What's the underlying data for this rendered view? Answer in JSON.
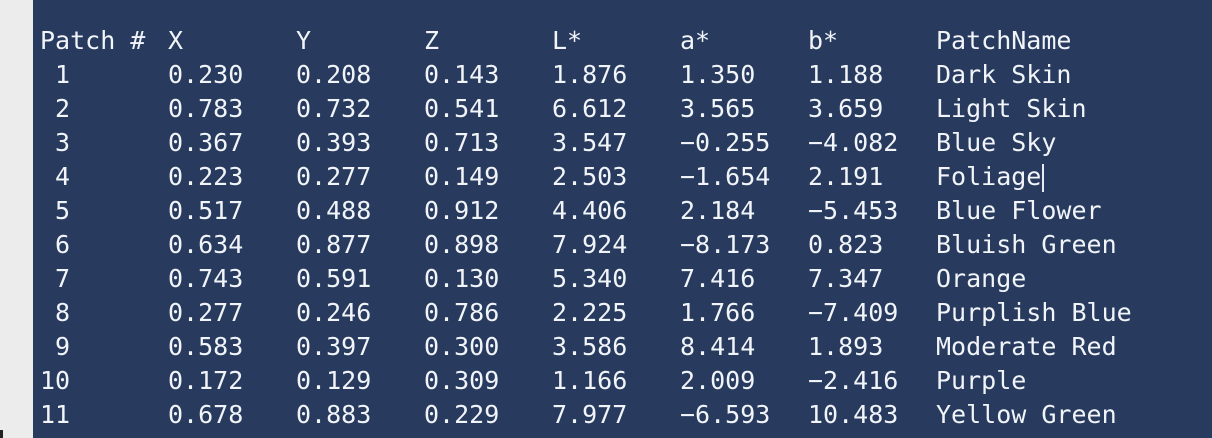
{
  "table": {
    "headers": [
      "Patch #",
      "X",
      "Y",
      "Z",
      "L*",
      "a*",
      "b*",
      "PatchName"
    ],
    "rows": [
      [
        "1",
        "0.230",
        "0.208",
        "0.143",
        "1.876",
        "1.350",
        "1.188",
        "Dark Skin"
      ],
      [
        "2",
        "0.783",
        "0.732",
        "0.541",
        "6.612",
        "3.565",
        "3.659",
        "Light Skin"
      ],
      [
        "3",
        "0.367",
        "0.393",
        "0.713",
        "3.547",
        "−0.255",
        "−4.082",
        "Blue Sky"
      ],
      [
        "4",
        "0.223",
        "0.277",
        "0.149",
        "2.503",
        "−1.654",
        "2.191",
        "Foliage"
      ],
      [
        "5",
        "0.517",
        "0.488",
        "0.912",
        "4.406",
        "2.184",
        "−5.453",
        "Blue Flower"
      ],
      [
        "6",
        "0.634",
        "0.877",
        "0.898",
        "7.924",
        "−8.173",
        "0.823",
        "Bluish Green"
      ],
      [
        "7",
        "0.743",
        "0.591",
        "0.130",
        "5.340",
        "7.416",
        "7.347",
        "Orange"
      ],
      [
        "8",
        "0.277",
        "0.246",
        "0.786",
        "2.225",
        "1.766",
        "−7.409",
        "Purplish Blue"
      ],
      [
        "9",
        "0.583",
        "0.397",
        "0.300",
        "3.586",
        "8.414",
        "1.893",
        "Moderate Red"
      ],
      [
        "10",
        "0.172",
        "0.129",
        "0.309",
        "1.166",
        "2.009",
        "−2.416",
        "Purple"
      ],
      [
        "11",
        "0.678",
        "0.883",
        "0.229",
        "7.977",
        "−6.593",
        "10.483",
        "Yellow Green"
      ]
    ]
  },
  "colors": {
    "background": "#283b5e",
    "text": "#f1f4f9",
    "gutter": "#ececec"
  }
}
